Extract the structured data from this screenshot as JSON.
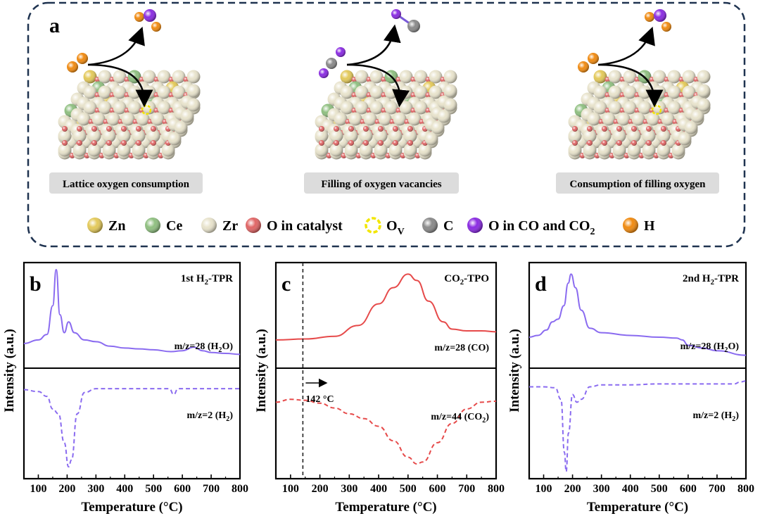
{
  "panel_a": {
    "label": "a",
    "captions": [
      "Lattice oxygen consumption",
      "Filling of oxygen vacancies",
      "Consumption of filling oxygen"
    ],
    "legend": [
      {
        "text": "Zn",
        "sub": "",
        "icon": "zn-atom-icon",
        "color": "#e3c95a"
      },
      {
        "text": "Ce",
        "sub": "",
        "icon": "ce-atom-icon",
        "color": "#8fbf80"
      },
      {
        "text": "Zr",
        "sub": "",
        "icon": "zr-atom-icon",
        "color": "#e8e3cc"
      },
      {
        "text": "O in catalyst",
        "sub": "",
        "icon": "lattice-oxygen-atom-icon",
        "color": "#e06565"
      },
      {
        "text": "O",
        "sub": "V",
        "icon": "oxygen-vacancy-icon",
        "color": "#f2e600"
      },
      {
        "text": "C",
        "sub": "",
        "icon": "carbon-atom-icon",
        "color": "#8a8a8a"
      },
      {
        "text": "O in CO and CO",
        "sub": "2",
        "icon": "gas-oxygen-atom-icon",
        "color": "#8a2be2"
      },
      {
        "text": "H",
        "sub": "",
        "icon": "hydrogen-atom-icon",
        "color": "#f08a10"
      }
    ]
  },
  "chart_data": [
    {
      "type": "line",
      "panel": "b",
      "title": "1st H2-TPR",
      "xlabel": "Temperature (°C)",
      "ylabel": "Intensity (a.u.)",
      "xlim": [
        50,
        800
      ],
      "xticks": [
        100,
        200,
        300,
        400,
        500,
        600,
        700,
        800
      ],
      "series": [
        {
          "name": "m/z=28 (H2O)",
          "style": "solid",
          "color": "#8a6bf0",
          "x": [
            50,
            100,
            130,
            150,
            162,
            175,
            190,
            205,
            225,
            260,
            300,
            350,
            400,
            450,
            500,
            560,
            600,
            640,
            670,
            700,
            750,
            800
          ],
          "y": [
            0.18,
            0.22,
            0.28,
            0.6,
            1.0,
            0.5,
            0.3,
            0.42,
            0.3,
            0.22,
            0.2,
            0.15,
            0.13,
            0.12,
            0.11,
            0.09,
            0.1,
            0.14,
            0.1,
            0.08,
            0.07,
            0.06
          ]
        },
        {
          "name": "m/z=2 (H2)",
          "style": "dashed",
          "color": "#8a6bf0",
          "x": [
            50,
            100,
            130,
            150,
            170,
            190,
            205,
            215,
            235,
            260,
            300,
            400,
            500,
            555,
            570,
            585,
            650,
            700,
            800
          ],
          "y": [
            0.85,
            0.83,
            0.78,
            0.65,
            0.6,
            0.3,
            0.05,
            0.12,
            0.6,
            0.82,
            0.86,
            0.86,
            0.86,
            0.86,
            0.8,
            0.86,
            0.86,
            0.86,
            0.86
          ]
        }
      ],
      "annotations": [
        "m/z=28 (H2O)",
        "m/z=2 (H2)"
      ]
    },
    {
      "type": "line",
      "panel": "c",
      "title": "CO2-TPO",
      "xlabel": "Temperature (°C)",
      "ylabel": "Intensity (a.u.)",
      "xlim": [
        50,
        800
      ],
      "xticks": [
        100,
        200,
        300,
        400,
        500,
        600,
        700,
        800
      ],
      "vline": 142,
      "vline_label": "142 °C",
      "series": [
        {
          "name": "m/z=28 (CO)",
          "style": "solid",
          "color": "#e64a4a",
          "x": [
            50,
            150,
            250,
            330,
            400,
            450,
            500,
            530,
            570,
            620,
            650,
            700,
            750,
            800
          ],
          "y": [
            0.22,
            0.23,
            0.26,
            0.38,
            0.62,
            0.8,
            0.95,
            0.88,
            0.65,
            0.42,
            0.34,
            0.32,
            0.32,
            0.31
          ]
        },
        {
          "name": "m/z=44 (CO2)",
          "style": "dashed",
          "color": "#e64a4a",
          "x": [
            50,
            100,
            150,
            200,
            250,
            300,
            350,
            400,
            450,
            500,
            530,
            550,
            600,
            650,
            700,
            750,
            800
          ],
          "y": [
            0.72,
            0.75,
            0.74,
            0.71,
            0.66,
            0.6,
            0.55,
            0.47,
            0.32,
            0.15,
            0.08,
            0.1,
            0.3,
            0.5,
            0.65,
            0.72,
            0.73
          ]
        }
      ],
      "annotations": [
        "m/z=28 (CO)",
        "m/z=44 (CO2)"
      ]
    },
    {
      "type": "line",
      "panel": "d",
      "title": "2nd H2-TPR",
      "xlabel": "Temperature (°C)",
      "ylabel": "Intensity (a.u.)",
      "xlim": [
        50,
        800
      ],
      "xticks": [
        100,
        200,
        300,
        400,
        500,
        600,
        700,
        800
      ],
      "series": [
        {
          "name": "m/z=28 (H2O)",
          "style": "solid",
          "color": "#8a6bf0",
          "x": [
            50,
            80,
            110,
            130,
            150,
            170,
            185,
            195,
            210,
            230,
            260,
            300,
            400,
            500,
            560,
            580,
            600,
            650,
            700,
            800
          ],
          "y": [
            0.25,
            0.27,
            0.33,
            0.42,
            0.45,
            0.6,
            0.85,
            0.95,
            0.8,
            0.55,
            0.35,
            0.3,
            0.27,
            0.25,
            0.24,
            0.22,
            0.16,
            0.13,
            0.1,
            0.05
          ]
        },
        {
          "name": "m/z=2 (H2)",
          "style": "dashed",
          "color": "#8a6bf0",
          "x": [
            50,
            100,
            140,
            160,
            172,
            178,
            186,
            200,
            215,
            230,
            260,
            300,
            400,
            500,
            600,
            700,
            760,
            780,
            800
          ],
          "y": [
            0.88,
            0.88,
            0.87,
            0.75,
            0.2,
            0.0,
            0.4,
            0.8,
            0.72,
            0.75,
            0.88,
            0.9,
            0.9,
            0.91,
            0.91,
            0.91,
            0.91,
            0.93,
            0.94
          ]
        }
      ],
      "annotations": [
        "m/z=28 (H2O)",
        "m/z=2 (H2)"
      ]
    }
  ]
}
